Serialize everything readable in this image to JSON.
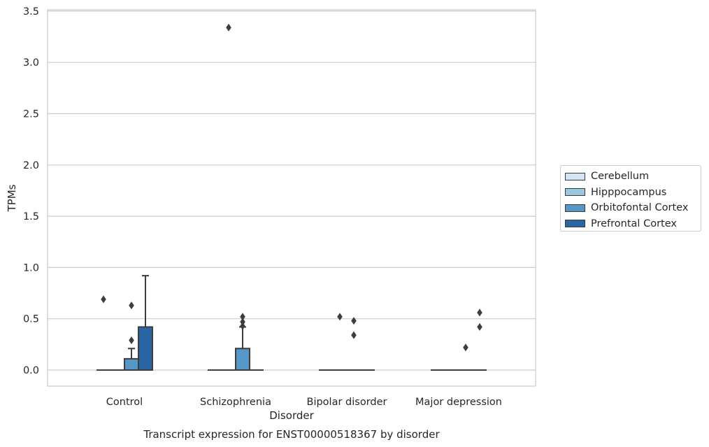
{
  "chart_data": {
    "type": "boxplot",
    "title": "Transcript expression for ENST00000518367 by disorder",
    "xlabel": "Disorder",
    "ylabel": "TPMs",
    "categories": [
      "Control",
      "Schizophrenia",
      "Bipolar disorder",
      "Major depression"
    ],
    "ylim": [
      -0.16,
      3.52
    ],
    "yticks": [
      0.0,
      0.5,
      1.0,
      1.5,
      2.0,
      2.5,
      3.0,
      3.5
    ],
    "ytick_labels": [
      "0.0",
      "0.5",
      "1.0",
      "1.5",
      "2.0",
      "2.5",
      "3.0",
      "3.5"
    ],
    "grid": "horizontal",
    "legend_position": "right",
    "series": [
      {
        "name": "Cerebellum",
        "color": "#d4e4f3",
        "boxes": [
          {
            "q1": 0,
            "median": 0,
            "q3": 0,
            "whisker_low": 0,
            "whisker_high": 0,
            "outliers": [
              0.69
            ]
          },
          {
            "q1": 0,
            "median": 0,
            "q3": 0,
            "whisker_low": 0,
            "whisker_high": 0,
            "outliers": []
          },
          {
            "q1": 0,
            "median": 0,
            "q3": 0,
            "whisker_low": 0,
            "whisker_high": 0,
            "outliers": []
          },
          {
            "q1": 0,
            "median": 0,
            "q3": 0,
            "whisker_low": 0,
            "whisker_high": 0,
            "outliers": []
          }
        ]
      },
      {
        "name": "Hipppocampus",
        "color": "#9ac6de",
        "boxes": [
          {
            "q1": 0,
            "median": 0,
            "q3": 0,
            "whisker_low": 0,
            "whisker_high": 0,
            "outliers": []
          },
          {
            "q1": 0,
            "median": 0,
            "q3": 0,
            "whisker_low": 0,
            "whisker_high": 0,
            "outliers": [
              3.34
            ]
          },
          {
            "q1": 0,
            "median": 0,
            "q3": 0,
            "whisker_low": 0,
            "whisker_high": 0,
            "outliers": [
              0.52
            ]
          },
          {
            "q1": 0,
            "median": 0,
            "q3": 0,
            "whisker_low": 0,
            "whisker_high": 0,
            "outliers": []
          }
        ]
      },
      {
        "name": "Orbitofontal Cortex",
        "color": "#5597c7",
        "boxes": [
          {
            "q1": 0,
            "median": 0,
            "q3": 0.11,
            "whisker_low": 0,
            "whisker_high": 0.21,
            "outliers": [
              0.29,
              0.63
            ]
          },
          {
            "q1": 0,
            "median": 0,
            "q3": 0.21,
            "whisker_low": 0,
            "whisker_high": 0.42,
            "outliers": [
              0.43,
              0.47,
              0.52
            ]
          },
          {
            "q1": 0,
            "median": 0,
            "q3": 0,
            "whisker_low": 0,
            "whisker_high": 0,
            "outliers": [
              0.34,
              0.48
            ]
          },
          {
            "q1": 0,
            "median": 0,
            "q3": 0,
            "whisker_low": 0,
            "whisker_high": 0,
            "outliers": [
              0.22
            ]
          }
        ]
      },
      {
        "name": "Prefrontal Cortex",
        "color": "#2b65a2",
        "boxes": [
          {
            "q1": 0,
            "median": 0,
            "q3": 0.42,
            "whisker_low": 0,
            "whisker_high": 0.92,
            "outliers": []
          },
          {
            "q1": 0,
            "median": 0,
            "q3": 0,
            "whisker_low": 0,
            "whisker_high": 0,
            "outliers": []
          },
          {
            "q1": 0,
            "median": 0,
            "q3": 0,
            "whisker_low": 0,
            "whisker_high": 0,
            "outliers": []
          },
          {
            "q1": 0,
            "median": 0,
            "q3": 0,
            "whisker_low": 0,
            "whisker_high": 0,
            "outliers": [
              0.42,
              0.56
            ]
          }
        ]
      }
    ]
  }
}
